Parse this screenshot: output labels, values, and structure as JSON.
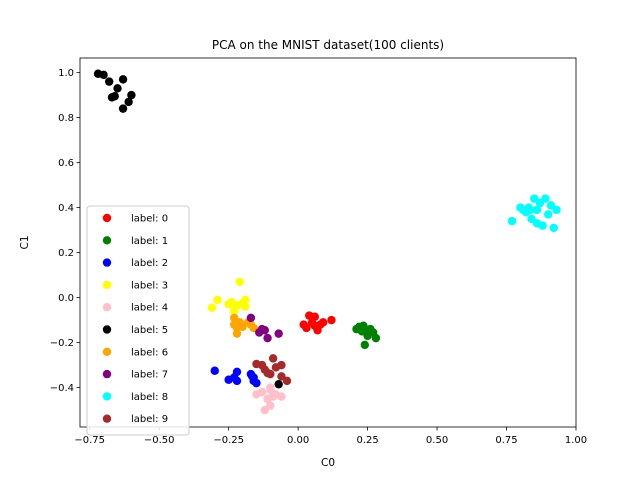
{
  "chart_data": {
    "type": "scatter",
    "title": "PCA on the MNIST dataset(100 clients)",
    "xlabel": "C0",
    "ylabel": "C1",
    "xlim": [
      -0.785,
      1.0
    ],
    "ylim": [
      -0.575,
      1.065
    ],
    "x_ticks": [
      -0.75,
      -0.5,
      -0.25,
      0.0,
      0.25,
      0.5,
      0.75,
      1.0
    ],
    "x_tick_labels": [
      "−0.75",
      "−0.50",
      "−0.25",
      "0.00",
      "0.25",
      "0.50",
      "0.75",
      "1.00"
    ],
    "y_ticks": [
      -0.4,
      -0.2,
      0.0,
      0.2,
      0.4,
      0.6,
      0.8,
      1.0
    ],
    "y_tick_labels": [
      "−0.4",
      "−0.2",
      "0.0",
      "0.2",
      "0.4",
      "0.6",
      "0.8",
      "1.0"
    ],
    "grid": false,
    "legend_position": "center-left",
    "series": [
      {
        "name": "label: 0",
        "color": "#ff0000",
        "points": [
          [
            0.02,
            -0.12
          ],
          [
            0.03,
            -0.135
          ],
          [
            0.04,
            -0.08
          ],
          [
            0.05,
            -0.11
          ],
          [
            0.06,
            -0.085
          ],
          [
            0.07,
            -0.145
          ],
          [
            0.08,
            -0.12
          ],
          [
            0.09,
            -0.11
          ],
          [
            0.12,
            -0.1
          ],
          [
            0.06,
            -0.125
          ]
        ]
      },
      {
        "name": "label: 1",
        "color": "#008000",
        "points": [
          [
            0.21,
            -0.14
          ],
          [
            0.22,
            -0.13
          ],
          [
            0.23,
            -0.15
          ],
          [
            0.25,
            -0.17
          ],
          [
            0.26,
            -0.14
          ],
          [
            0.27,
            -0.155
          ],
          [
            0.28,
            -0.18
          ],
          [
            0.24,
            -0.21
          ],
          [
            0.235,
            -0.125
          ],
          [
            0.25,
            -0.15
          ]
        ]
      },
      {
        "name": "label: 2",
        "color": "#0000ff",
        "points": [
          [
            -0.3,
            -0.325
          ],
          [
            -0.25,
            -0.365
          ],
          [
            -0.23,
            -0.355
          ],
          [
            -0.22,
            -0.33
          ],
          [
            -0.22,
            -0.37
          ],
          [
            -0.17,
            -0.34
          ],
          [
            -0.16,
            -0.355
          ],
          [
            -0.15,
            -0.38
          ],
          [
            -0.16,
            -0.37
          ],
          [
            -0.165,
            -0.35
          ]
        ]
      },
      {
        "name": "label: 3",
        "color": "#ffff00",
        "points": [
          [
            -0.31,
            -0.045
          ],
          [
            -0.29,
            -0.01
          ],
          [
            -0.25,
            -0.03
          ],
          [
            -0.24,
            -0.02
          ],
          [
            -0.21,
            0.07
          ],
          [
            -0.19,
            -0.01
          ],
          [
            -0.19,
            -0.04
          ],
          [
            -0.2,
            -0.025
          ],
          [
            -0.22,
            -0.035
          ],
          [
            -0.23,
            -0.06
          ]
        ]
      },
      {
        "name": "label: 4",
        "color": "#ffc0cb",
        "points": [
          [
            -0.15,
            -0.43
          ],
          [
            -0.12,
            -0.5
          ],
          [
            -0.1,
            -0.48
          ],
          [
            -0.11,
            -0.45
          ],
          [
            -0.09,
            -0.44
          ],
          [
            -0.08,
            -0.43
          ],
          [
            -0.1,
            -0.41
          ],
          [
            -0.06,
            -0.44
          ],
          [
            -0.13,
            -0.42
          ],
          [
            -0.1,
            -0.4
          ]
        ]
      },
      {
        "name": "label: 5",
        "color": "#000000",
        "points": [
          [
            -0.72,
            0.995
          ],
          [
            -0.7,
            0.99
          ],
          [
            -0.68,
            0.96
          ],
          [
            -0.67,
            0.89
          ],
          [
            -0.66,
            0.895
          ],
          [
            -0.65,
            0.93
          ],
          [
            -0.63,
            0.97
          ],
          [
            -0.63,
            0.84
          ],
          [
            -0.61,
            0.87
          ],
          [
            -0.6,
            0.9
          ]
        ]
      },
      {
        "name": "label: 6",
        "color": "#ffa500",
        "points": [
          [
            -0.22,
            -0.12
          ],
          [
            -0.23,
            -0.12
          ],
          [
            -0.22,
            -0.135
          ],
          [
            -0.21,
            -0.11
          ],
          [
            -0.2,
            -0.13
          ],
          [
            -0.17,
            -0.12
          ],
          [
            -0.22,
            -0.16
          ],
          [
            -0.16,
            -0.135
          ],
          [
            -0.23,
            -0.09
          ],
          [
            -0.18,
            -0.11
          ]
        ]
      },
      {
        "name": "label: 7",
        "color": "#800080",
        "points": [
          [
            -0.17,
            -0.09
          ],
          [
            -0.14,
            -0.155
          ],
          [
            -0.12,
            -0.145
          ],
          [
            -0.11,
            -0.18
          ],
          [
            -0.07,
            -0.16
          ],
          [
            -0.13,
            -0.14
          ]
        ]
      },
      {
        "name": "label: 8",
        "color": "#00ffff",
        "points": [
          [
            0.77,
            0.34
          ],
          [
            0.8,
            0.4
          ],
          [
            0.82,
            0.38
          ],
          [
            0.83,
            0.4
          ],
          [
            0.84,
            0.35
          ],
          [
            0.85,
            0.44
          ],
          [
            0.86,
            0.39
          ],
          [
            0.88,
            0.32
          ],
          [
            0.89,
            0.44
          ],
          [
            0.9,
            0.37
          ],
          [
            0.91,
            0.41
          ],
          [
            0.92,
            0.31
          ],
          [
            0.93,
            0.39
          ],
          [
            0.87,
            0.42
          ],
          [
            0.86,
            0.33
          ],
          [
            0.835,
            0.39
          ],
          [
            0.81,
            0.39
          ]
        ]
      },
      {
        "name": "label: 9",
        "color": "#a52a2a",
        "points": [
          [
            -0.15,
            -0.295
          ],
          [
            -0.13,
            -0.3
          ],
          [
            -0.12,
            -0.32
          ],
          [
            -0.11,
            -0.335
          ],
          [
            -0.09,
            -0.27
          ],
          [
            -0.08,
            -0.31
          ],
          [
            -0.06,
            -0.3
          ],
          [
            -0.06,
            -0.35
          ],
          [
            -0.04,
            -0.37
          ],
          [
            -0.1,
            -0.34
          ]
        ]
      },
      {
        "name": "",
        "color": "#000000",
        "points": [
          [
            -0.07,
            -0.385
          ]
        ]
      }
    ]
  }
}
